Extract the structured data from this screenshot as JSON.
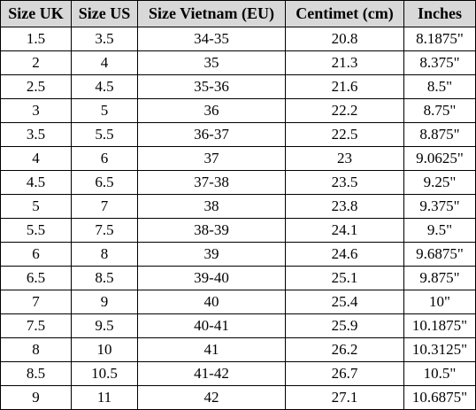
{
  "table": {
    "headers": [
      "Size UK",
      "Size US",
      "Size Vietnam (EU)",
      "Centimet (cm)",
      "Inches"
    ],
    "rows": [
      [
        "1.5",
        "3.5",
        "34-35",
        "20.8",
        "8.1875\""
      ],
      [
        "2",
        "4",
        "35",
        "21.3",
        "8.375\""
      ],
      [
        "2.5",
        "4.5",
        "35-36",
        "21.6",
        "8.5\""
      ],
      [
        "3",
        "5",
        "36",
        "22.2",
        "8.75\""
      ],
      [
        "3.5",
        "5.5",
        "36-37",
        "22.5",
        "8.875\""
      ],
      [
        "4",
        "6",
        "37",
        "23",
        "9.0625\""
      ],
      [
        "4.5",
        "6.5",
        "37-38",
        "23.5",
        "9.25\""
      ],
      [
        "5",
        "7",
        "38",
        "23.8",
        "9.375\""
      ],
      [
        "5.5",
        "7.5",
        "38-39",
        "24.1",
        "9.5\""
      ],
      [
        "6",
        "8",
        "39",
        "24.6",
        "9.6875\""
      ],
      [
        "6.5",
        "8.5",
        "39-40",
        "25.1",
        "9.875\""
      ],
      [
        "7",
        "9",
        "40",
        "25.4",
        "10\""
      ],
      [
        "7.5",
        "9.5",
        "40-41",
        "25.9",
        "10.1875\""
      ],
      [
        "8",
        "10",
        "41",
        "26.2",
        "10.3125\""
      ],
      [
        "8.5",
        "10.5",
        "41-42",
        "26.7",
        "10.5\""
      ],
      [
        "9",
        "11",
        "42",
        "27.1",
        "10.6875\""
      ]
    ],
    "header_background": "#d8d8d8",
    "border_color": "#000000"
  }
}
